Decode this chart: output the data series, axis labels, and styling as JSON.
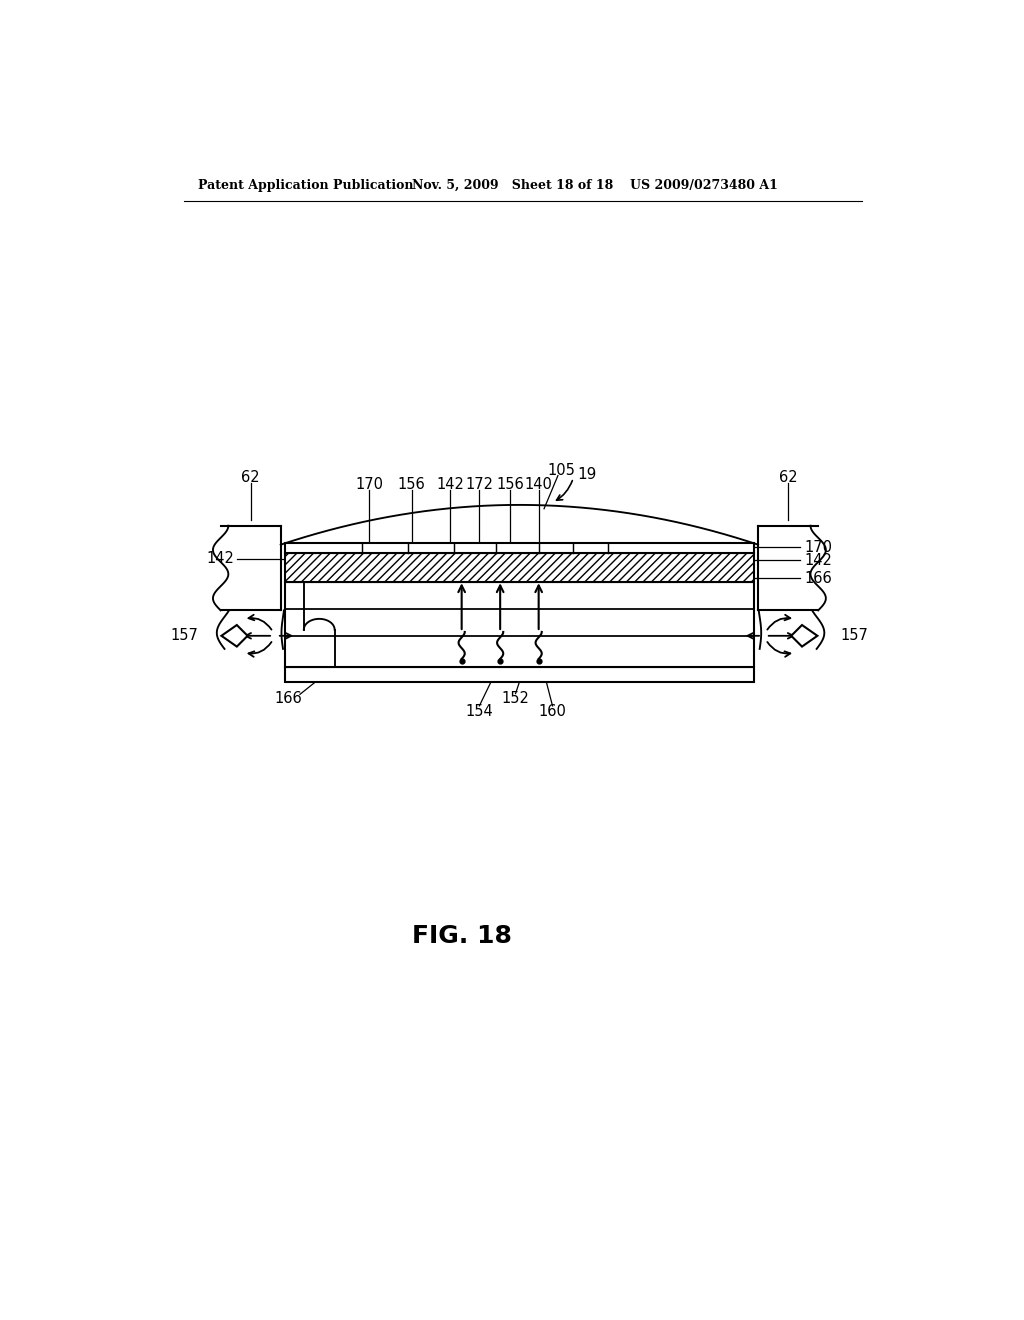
{
  "bg_color": "#ffffff",
  "header_left": "Patent Application Publication",
  "header_mid": "Nov. 5, 2009   Sheet 18 of 18",
  "header_right": "US 2009/0273480 A1",
  "fig_label": "FIG. 18",
  "line_color": "#000000",
  "lw": 1.5
}
